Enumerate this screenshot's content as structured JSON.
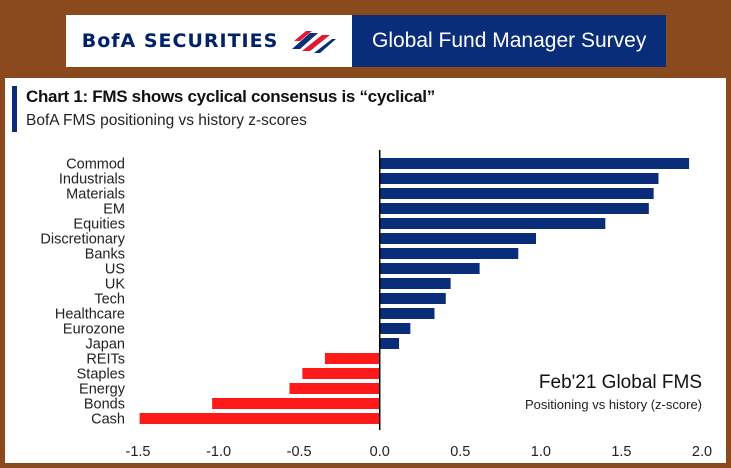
{
  "header": {
    "brand": "BofA SECURITIES",
    "survey": "Global Fund Manager Survey",
    "brand_color": "#012169",
    "flag_red": "#e31837",
    "banner_blue": "#0a2d7a"
  },
  "chart_data": {
    "type": "bar",
    "orientation": "horizontal",
    "title": "Chart 1:  FMS shows cyclical consensus is “cyclical”",
    "subtitle": "BofA FMS positioning vs history z-scores",
    "categories": [
      "Commod",
      "Industrials",
      "Materials",
      "EM",
      "Equities",
      "Discretionary",
      "Banks",
      "US",
      "UK",
      "Tech",
      "Healthcare",
      "Eurozone",
      "Japan",
      "REITs",
      "Staples",
      "Energy",
      "Bonds",
      "Cash"
    ],
    "values": [
      1.92,
      1.73,
      1.7,
      1.67,
      1.4,
      0.97,
      0.86,
      0.62,
      0.44,
      0.41,
      0.34,
      0.19,
      0.12,
      -0.34,
      -0.48,
      -0.56,
      -1.04,
      -1.49
    ],
    "xlim": [
      -1.5,
      2.0
    ],
    "xticks": [
      "-1.5",
      "-1.0",
      "-0.5",
      "0.0",
      "0.5",
      "1.0",
      "1.5",
      "2.0"
    ],
    "xtick_values": [
      -1.5,
      -1.0,
      -0.5,
      0.0,
      0.5,
      1.0,
      1.5,
      2.0
    ],
    "positive_color": "#0a2d7a",
    "negative_color": "#ff1a1a",
    "grid": false,
    "annotation": {
      "title": "Feb'21 Global FMS",
      "subtitle": "Positioning vs history (z-score)"
    }
  }
}
